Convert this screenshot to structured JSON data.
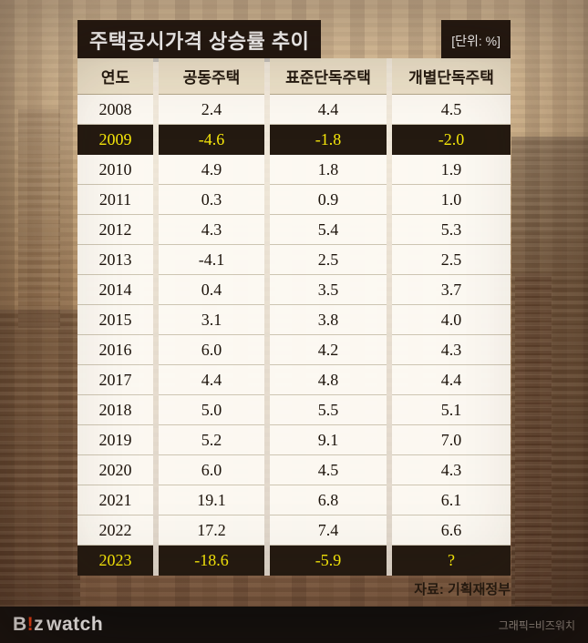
{
  "title": "주택공시가격 상승률 추이",
  "unit": "[단위: %]",
  "table": {
    "headers": [
      "연도",
      "공동주택",
      "표준단독주택",
      "개별단독주택"
    ],
    "rows": [
      {
        "year": "2008",
        "c1": "2.4",
        "c2": "4.4",
        "c3": "4.5"
      },
      {
        "year": "2009",
        "c1": "-4.6",
        "c2": "-1.8",
        "c3": "-2.0"
      },
      {
        "year": "2010",
        "c1": "4.9",
        "c2": "1.8",
        "c3": "1.9"
      },
      {
        "year": "2011",
        "c1": "0.3",
        "c2": "0.9",
        "c3": "1.0"
      },
      {
        "year": "2012",
        "c1": "4.3",
        "c2": "5.4",
        "c3": "5.3"
      },
      {
        "year": "2013",
        "c1": "-4.1",
        "c2": "2.5",
        "c3": "2.5"
      },
      {
        "year": "2014",
        "c1": "0.4",
        "c2": "3.5",
        "c3": "3.7"
      },
      {
        "year": "2015",
        "c1": "3.1",
        "c2": "3.8",
        "c3": "4.0"
      },
      {
        "year": "2016",
        "c1": "6.0",
        "c2": "4.2",
        "c3": "4.3"
      },
      {
        "year": "2017",
        "c1": "4.4",
        "c2": "4.8",
        "c3": "4.4"
      },
      {
        "year": "2018",
        "c1": "5.0",
        "c2": "5.5",
        "c3": "5.1"
      },
      {
        "year": "2019",
        "c1": "5.2",
        "c2": "9.1",
        "c3": "7.0"
      },
      {
        "year": "2020",
        "c1": "6.0",
        "c2": "4.5",
        "c3": "4.3"
      },
      {
        "year": "2021",
        "c1": "19.1",
        "c2": "6.8",
        "c3": "6.1"
      },
      {
        "year": "2022",
        "c1": "17.2",
        "c2": "7.4",
        "c3": "6.6"
      },
      {
        "year": "2023",
        "c1": "-18.6",
        "c2": "-5.9",
        "c3": "?"
      }
    ]
  },
  "source": "자료: 기획재정부",
  "footer": {
    "brand_b": "B",
    "brand_excl": "!",
    "brand_z": "z",
    "brand_watch": "watch",
    "credit": "그래픽=비즈워치"
  },
  "colors": {
    "highlight_bg": "#241a11",
    "highlight_text": "#f6e70a",
    "title_bg": "#211710",
    "footer_bg": "#0c0c0c",
    "brand_accent": "#ff4013"
  },
  "chart_data": {
    "type": "table",
    "title": "주택공시가격 상승률 추이",
    "unit": "%",
    "columns": [
      "연도",
      "공동주택",
      "표준단독주택",
      "개별단독주택"
    ],
    "rows": [
      [
        "2008",
        2.4,
        4.4,
        4.5
      ],
      [
        "2009",
        -4.6,
        -1.8,
        -2.0
      ],
      [
        "2010",
        4.9,
        1.8,
        1.9
      ],
      [
        "2011",
        0.3,
        0.9,
        1.0
      ],
      [
        "2012",
        4.3,
        5.4,
        5.3
      ],
      [
        "2013",
        -4.1,
        2.5,
        2.5
      ],
      [
        "2014",
        0.4,
        3.5,
        3.7
      ],
      [
        "2015",
        3.1,
        3.8,
        4.0
      ],
      [
        "2016",
        6.0,
        4.2,
        4.3
      ],
      [
        "2017",
        4.4,
        4.8,
        4.4
      ],
      [
        "2018",
        5.0,
        5.5,
        5.1
      ],
      [
        "2019",
        5.2,
        9.1,
        7.0
      ],
      [
        "2020",
        6.0,
        4.5,
        4.3
      ],
      [
        "2021",
        19.1,
        6.8,
        6.1
      ],
      [
        "2022",
        17.2,
        7.4,
        6.6
      ],
      [
        "2023",
        -18.6,
        -5.9,
        "?"
      ]
    ],
    "highlighted_rows": [
      "2009",
      "2023"
    ],
    "source": "자료: 기획재정부"
  }
}
